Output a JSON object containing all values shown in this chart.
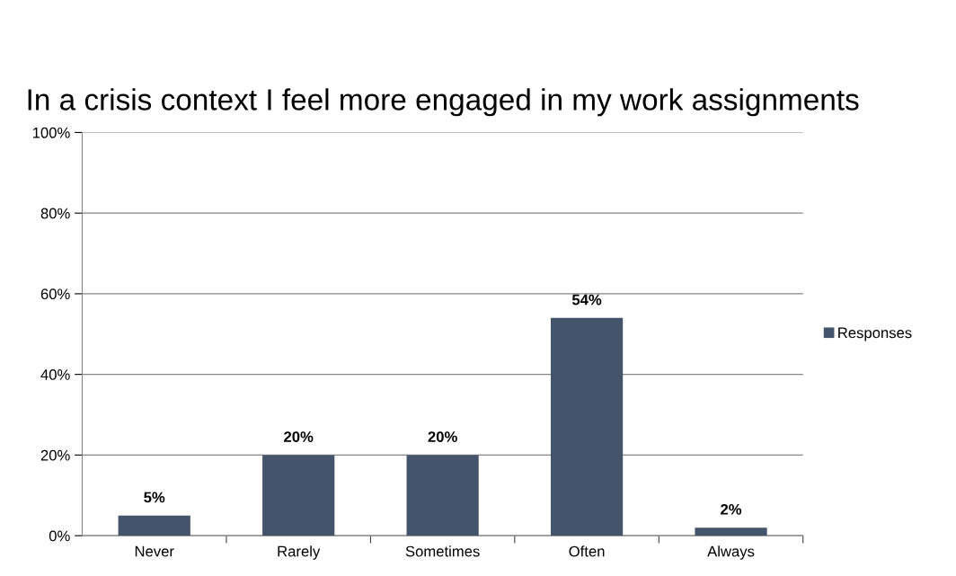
{
  "chart_data": {
    "type": "bar",
    "title": "In a crisis context I feel more engaged in my work assignments",
    "categories": [
      "Never",
      "Rarely",
      "Sometimes",
      "Often",
      "Always"
    ],
    "series": [
      {
        "name": "Responses",
        "color": "#44546a",
        "values": [
          5,
          20,
          20,
          54,
          2
        ]
      }
    ],
    "ylim": [
      0,
      100
    ],
    "yticks": [
      {
        "value": 0,
        "label": "0%"
      },
      {
        "value": 20,
        "label": "20%"
      },
      {
        "value": 40,
        "label": "40%"
      },
      {
        "value": 60,
        "label": "60%"
      },
      {
        "value": 80,
        "label": "80%"
      },
      {
        "value": 100,
        "label": "100%"
      }
    ],
    "value_labels": [
      "5%",
      "20%",
      "20%",
      "54%",
      "2%"
    ],
    "grid": "y",
    "legend": "right"
  }
}
